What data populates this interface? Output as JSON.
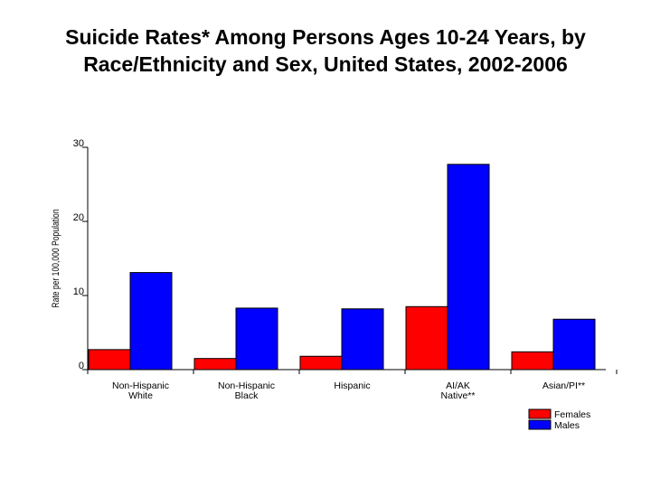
{
  "chart_data": {
    "type": "bar",
    "title_lines": [
      "Suicide Rates* Among Persons Ages 10-24 Years, by",
      "Race/Ethnicity and Sex, United States, 2002-2006"
    ],
    "ylabel": "Rate per 100,000 Population",
    "xlabel": "",
    "ylim": [
      0,
      30
    ],
    "yticks": [
      0,
      10,
      20,
      30
    ],
    "categories": [
      [
        "Non-Hispanic",
        "White"
      ],
      [
        "Non-Hispanic",
        "Black"
      ],
      [
        "Hispanic"
      ],
      [
        "AI/AK",
        "Native**"
      ],
      [
        "Asian/PI**"
      ]
    ],
    "series": [
      {
        "name": "Females",
        "color": "#ff0000",
        "values": [
          2.7,
          1.5,
          1.8,
          8.5,
          2.4
        ]
      },
      {
        "name": "Males",
        "color": "#0000ff",
        "values": [
          13.1,
          8.3,
          8.2,
          27.7,
          6.8
        ]
      }
    ],
    "legend_position": "bottom-right",
    "grid": false
  }
}
